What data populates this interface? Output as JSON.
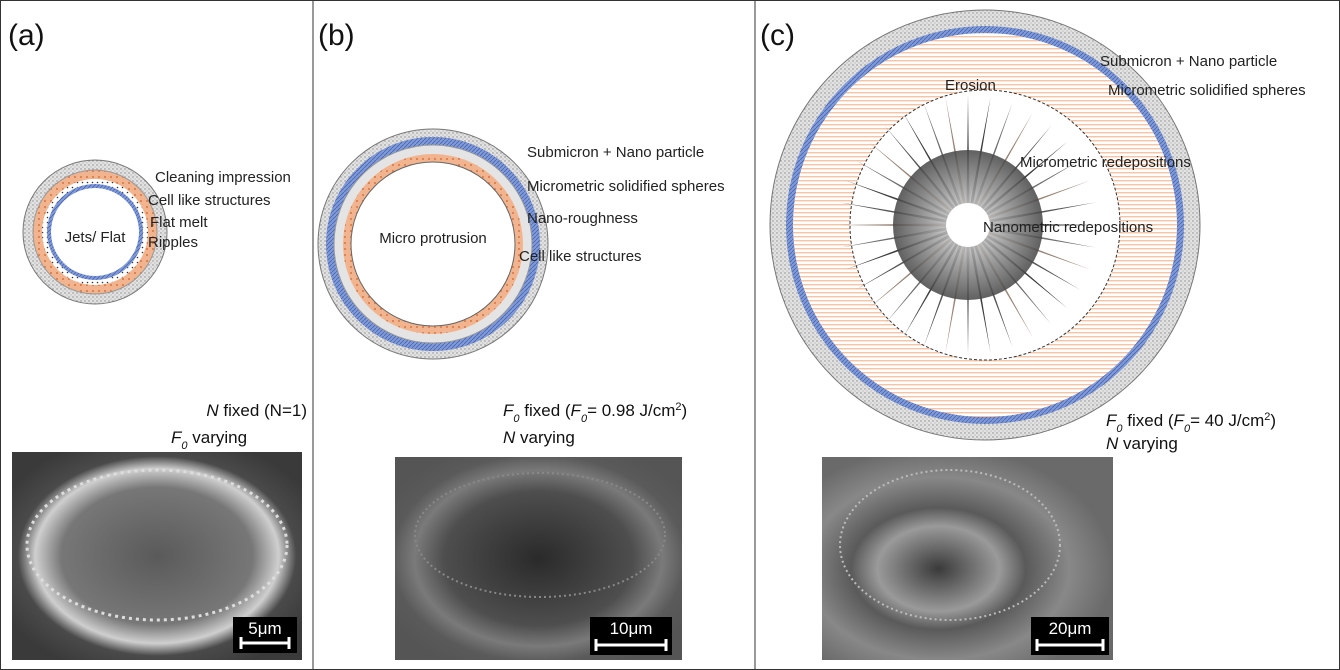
{
  "panels": [
    {
      "label": "(a)",
      "annotations": [
        "Cleaning impression",
        "Cell like structures",
        "Flat melt",
        "Ripples"
      ],
      "center_label": "Jets/ Flat",
      "condition": [
        [
          "N",
          " fixed (N=1)"
        ],
        [
          "F",
          "0",
          " varying"
        ]
      ],
      "scale_bar": "5μm"
    },
    {
      "label": "(b)",
      "annotations": [
        "Submicron + Nano particle",
        "Micrometric solidified spheres",
        "Nano-roughness",
        "Cell like structures"
      ],
      "center_label": "Micro protrusion",
      "condition": [
        [
          "F",
          "0",
          " fixed (",
          "F",
          "0",
          "= 0.98 J/cm",
          "2",
          ")"
        ],
        [
          "N",
          " varying"
        ]
      ],
      "scale_bar": "10μm"
    },
    {
      "label": "(c)",
      "annotations": [
        "Submicron + Nano particle",
        "Micrometric solidified spheres",
        "Erosion",
        "Micrometric redepositions",
        "Nanometric redepositions"
      ],
      "condition": [
        [
          "F",
          "0",
          " fixed (",
          "F",
          "0",
          "= 40 J/cm",
          "2",
          ")"
        ],
        [
          "N",
          " varying"
        ]
      ],
      "scale_bar": "20μm"
    }
  ]
}
